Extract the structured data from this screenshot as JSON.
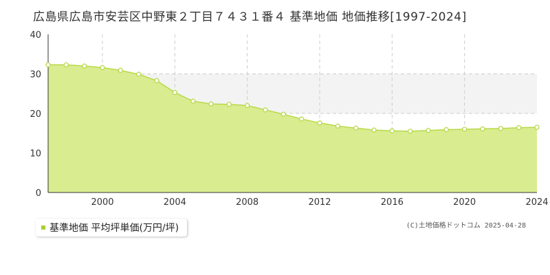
{
  "title": "広島県広島市安芸区中野東２丁目７４３１番４ 基準地価 地価推移[1997-2024]",
  "legend_label": "基準地価 平均坪単価(万円/坪)",
  "credit": "(C)土地価格ドットコム 2025-04-28",
  "colors": {
    "area_fill": "#d9ec8f",
    "line": "#b8d94a",
    "legend_swatch": "#a8cf2f",
    "band": "#f3f3f3",
    "grid": "#cccccc",
    "axis": "#333333"
  },
  "chart_data": {
    "type": "area",
    "xlim": [
      1997,
      2024
    ],
    "ylim": [
      0,
      40
    ],
    "x_ticks": [
      2000,
      2004,
      2008,
      2012,
      2016,
      2020,
      2024
    ],
    "y_ticks": [
      0,
      10,
      20,
      30,
      40
    ],
    "grid": true,
    "legend_position": "bottom-left",
    "series": [
      {
        "name": "基準地価 平均坪単価(万円/坪)",
        "x": [
          1997,
          1998,
          1999,
          2000,
          2001,
          2002,
          2003,
          2004,
          2005,
          2006,
          2007,
          2008,
          2009,
          2010,
          2011,
          2012,
          2013,
          2014,
          2015,
          2016,
          2017,
          2018,
          2019,
          2020,
          2021,
          2022,
          2023,
          2024
        ],
        "values": [
          32.3,
          32.3,
          32.0,
          31.6,
          30.9,
          29.9,
          28.3,
          25.3,
          23.1,
          22.4,
          22.3,
          22.0,
          20.9,
          19.8,
          18.6,
          17.6,
          16.8,
          16.3,
          15.8,
          15.6,
          15.5,
          15.7,
          15.9,
          16.0,
          16.1,
          16.2,
          16.4,
          16.5
        ]
      }
    ]
  }
}
